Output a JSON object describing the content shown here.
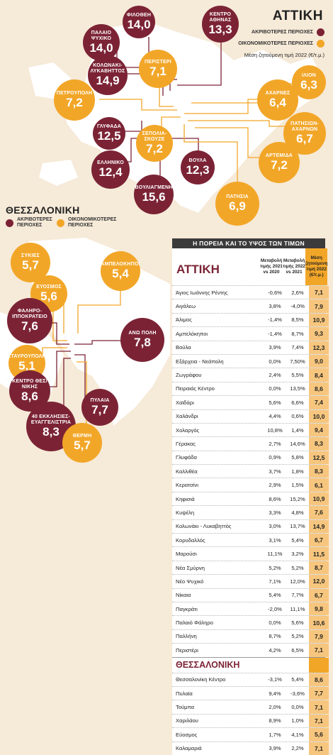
{
  "attica": {
    "title": "ΑΤΤΙΚΗ",
    "legend_expensive": "ΑΚΡΙΒΟΤΕΡΕΣ ΠΕΡΙΟΧΕΣ",
    "legend_cheap": "ΟΙΚΟΝΟΜΙΚΟΤΕΡΕΣ ΠΕΡΙΟΧΕΣ",
    "subtitle": "Μέση ζητούμενη τιμή 2022 (€/τ.μ.)",
    "bubbles": [
      {
        "id": "filothei",
        "label": "ΦΙΛΟΘΕΗ",
        "value": "14,0",
        "kind": "expensive"
      },
      {
        "id": "kentro_athinas",
        "label": "ΚΕΝΤΡΟ ΑΘΗΝΑΣ",
        "value": "13,3",
        "kind": "expensive"
      },
      {
        "id": "palaio_psychiko",
        "label": "ΠΑΛΑΙΟ ΨΥΧΙΚΟ",
        "value": "14,0",
        "kind": "expensive"
      },
      {
        "id": "kolonaki",
        "label": "ΚΟΛΩΝΑΚΙ-ΛΥΚΑΒΗΤΤΟΣ",
        "value": "14,9",
        "kind": "expensive"
      },
      {
        "id": "peristeri",
        "label": "ΠΕΡΙΣΤΕΡΙ",
        "value": "7,1",
        "kind": "cheap"
      },
      {
        "id": "ilion",
        "label": "ΙΛΙΟΝ",
        "value": "6,3",
        "kind": "cheap"
      },
      {
        "id": "petroupoli",
        "label": "ΠΕΤΡΟΥΠΟΛΗ",
        "value": "7,2",
        "kind": "cheap"
      },
      {
        "id": "acharnes",
        "label": "ΑΧΑΡΝΕΣ",
        "value": "6,4",
        "kind": "cheap"
      },
      {
        "id": "glyfada",
        "label": "ΓΛΥΦΑΔΑ",
        "value": "12,5",
        "kind": "expensive"
      },
      {
        "id": "sepolia",
        "label": "ΣΕΠΟΛΙΑ-ΣΚΟΥΖΕ",
        "value": "7,2",
        "kind": "cheap"
      },
      {
        "id": "patision",
        "label": "ΠΑΤΗΣΙΩΝ-ΑΧΑΡΝΩΝ",
        "value": "6,7",
        "kind": "cheap"
      },
      {
        "id": "elliniko",
        "label": "ΕΛΛΗΝΙΚΟ",
        "value": "12,4",
        "kind": "expensive"
      },
      {
        "id": "voula",
        "label": "ΒΟΥΛΑ",
        "value": "12,3",
        "kind": "expensive"
      },
      {
        "id": "artemida",
        "label": "ΑΡΤΕΜΙΔΑ",
        "value": "7,2",
        "kind": "cheap"
      },
      {
        "id": "vouliagmeni",
        "label": "ΒΟΥΛΙΑΓΜΕΝΗ",
        "value": "15,6",
        "kind": "expensive"
      },
      {
        "id": "patision_2",
        "label": "ΠΑΤΗΣΙΑ",
        "value": "6,9",
        "kind": "cheap"
      }
    ]
  },
  "thessaloniki": {
    "title": "ΘΕΣΣΑΛΟΝΙΚΗ",
    "legend_expensive": "ΑΚΡΙΒΟΤΕΡΕΣ ΠΕΡΙΟΧΕΣ",
    "legend_cheap": "ΟΙΚΟΝΟΜΙΚΟΤΕΡΕΣ ΠΕΡΙΟΧΕΣ",
    "bubbles": [
      {
        "id": "sykies",
        "label": "ΣΥΚΙΕΣ",
        "value": "5,7",
        "kind": "cheap"
      },
      {
        "id": "ampelokipoi",
        "label": "ΑΜΠΕΛΟΚΗΠΟΙ",
        "value": "5,4",
        "kind": "cheap"
      },
      {
        "id": "evosmos",
        "label": "ΕΥΟΣΜΟΣ",
        "value": "5,6",
        "kind": "cheap"
      },
      {
        "id": "faliro",
        "label": "ΦΑΛΗΡΟ-ΙΠΠΟΚΡΑΤΕΙΟ",
        "value": "7,6",
        "kind": "expensive"
      },
      {
        "id": "ano_poli",
        "label": "ΑΝΩ ΠΟΛΗ",
        "value": "7,8",
        "kind": "expensive"
      },
      {
        "id": "stavroupoli",
        "label": "ΣΤΑΥΡΟΥΠΟΛΗ",
        "value": "5,1",
        "kind": "cheap"
      },
      {
        "id": "kentro_thes",
        "label": "ΚΕΝΤΡΟ ΘΕΣ/ΝΙΚΗΣ",
        "value": "8,6",
        "kind": "expensive"
      },
      {
        "id": "pylaia",
        "label": "ΠΥΛΑΙΑ",
        "value": "7,7",
        "kind": "expensive"
      },
      {
        "id": "ekklisies",
        "label": "40 ΕΚΚΛΗΣΙΕΣ-ΕΥΑΓΓΕΛΙΣΤΡΙΑ",
        "value": "8,3",
        "kind": "expensive"
      },
      {
        "id": "thermi",
        "label": "ΘΕΡΜΗ",
        "value": "5,7",
        "kind": "cheap"
      }
    ]
  },
  "table": {
    "title": "Η ΠΟΡΕΙΑ ΚΑΙ ΤΟ ΥΨΟΣ ΤΩΝ ΤΙΜΩΝ",
    "col1": "Μεταβολή τιμής 2021 vs 2020",
    "col2": "Μεταβολή τιμής 2022 vs 2021",
    "col3": "Μέση ζητούμενη τιμή 2022 (€/τ.μ.)",
    "section1": "ΑΤΤΙΚΗ",
    "section2": "ΘΕΣΣΑΛΟΝΙΚΗ"
  },
  "chart_data": {
    "type": "table",
    "columns": [
      "Περιοχή",
      "Μεταβολή τιμής 2021 vs 2020",
      "Μεταβολή τιμής 2022 vs 2021",
      "Μέση ζητούμενη τιμή 2022 (€/τ.μ.)"
    ],
    "attica": [
      [
        "Άγιος Ιωάννης Ρέντης",
        "-0,6%",
        "2,6%",
        "7,1"
      ],
      [
        "Αιγάλεω",
        "3,8%",
        "-4,0%",
        "7,9"
      ],
      [
        "Άλιμος",
        "-1,4%",
        "8,5%",
        "10,9"
      ],
      [
        "Αμπελόκηποι",
        "-1,4%",
        "8,7%",
        "9,3"
      ],
      [
        "Βούλα",
        "3,9%",
        "7,4%",
        "12,3"
      ],
      [
        "Εξάρχεια - Νεάπολη",
        "0,0%",
        "7,50%",
        "9,0"
      ],
      [
        "Ζωγράφου",
        "2,4%",
        "5,5%",
        "8,4"
      ],
      [
        "Πειραιάς Κέντρο",
        "0,0%",
        "13,5%",
        "8,6"
      ],
      [
        "Χαϊδάρι",
        "5,6%",
        "6,6%",
        "7,4"
      ],
      [
        "Χαλάνδρι",
        "4,4%",
        "0,6%",
        "10,0"
      ],
      [
        "Χολαργός",
        "10,8%",
        "1,4%",
        "9,4"
      ],
      [
        "Γέρακας",
        "2,7%",
        "14,6%",
        "8,3"
      ],
      [
        "Γλυφάδα",
        "0,9%",
        "5,8%",
        "12,5"
      ],
      [
        "Καλλιθέα",
        "3,7%",
        "1,8%",
        "8,3"
      ],
      [
        "Κερατσίνι",
        "2,9%",
        "1,5%",
        "6,1"
      ],
      [
        "Κηφισιά",
        "8,6%",
        "15,2%",
        "10,9"
      ],
      [
        "Κυψέλη",
        "3,3%",
        "4,8%",
        "7,6"
      ],
      [
        "Κολωνάκι - Λυκαβηττός",
        "3,0%",
        "13,7%",
        "14,9"
      ],
      [
        "Κορυδαλλός",
        "3,1%",
        "5,4%",
        "6,7"
      ],
      [
        "Μαρούσι",
        "11,1%",
        "3,2%",
        "11,5"
      ],
      [
        "Νέα Σμύρνη",
        "5,2%",
        "5,2%",
        "8,7"
      ],
      [
        "Νέο Ψυχικό",
        "7,1%",
        "12,0%",
        "12,0"
      ],
      [
        "Νίκαια",
        "5,4%",
        "7,7%",
        "6,7"
      ],
      [
        "Παγκράτι",
        "-2,0%",
        "11,1%",
        "9,8"
      ],
      [
        "Παλαιό Φάληρο",
        "0,0%",
        "5,6%",
        "10,6"
      ],
      [
        "Παλλήνη",
        "8,7%",
        "5,2%",
        "7,9"
      ],
      [
        "Περιστέρι",
        "4,2%",
        "6,5%",
        "7,1"
      ]
    ],
    "thessaloniki": [
      [
        "Θεσσαλονίκη Κέντρο",
        "-3,1%",
        "5,4%",
        "8,6"
      ],
      [
        "Πυλαία",
        "9,4%",
        "-3,6%",
        "7,7"
      ],
      [
        "Τούμπα",
        "2,0%",
        "0,0%",
        "7,1"
      ],
      [
        "Χαριλάου",
        "8,9%",
        "1,0%",
        "7,1"
      ],
      [
        "Εύοσμος",
        "1,7%",
        "4,1%",
        "5,6"
      ],
      [
        "Καλαμαριά",
        "3,9%",
        "2,2%",
        "7,1"
      ]
    ]
  }
}
